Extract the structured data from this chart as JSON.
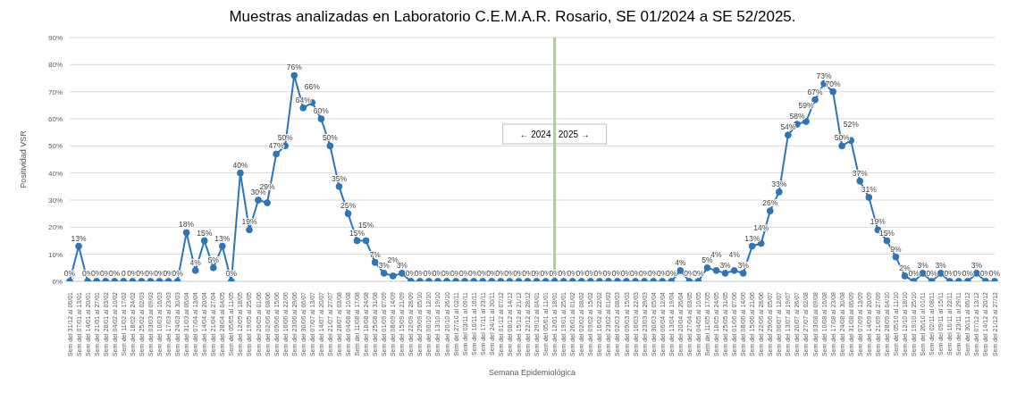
{
  "chart_data": {
    "type": "line",
    "title": "Muestras analizadas en Laboratorio C.E.M.A.R. Rosario, SE 01/2024 a SE 52/2025.",
    "xlabel": "Semana Epidemiológica",
    "ylabel": "Positividad VSR",
    "categories": [
      "Sem del 31/12 al 06/01",
      "Sem del 07/01 al 13/01",
      "Sem del 14/01 al 20/01",
      "Sem del 21/01 al 27/01",
      "Sem del 28/01 al 03/02",
      "Sem del 04/02 al 10/02",
      "Sem del 11/02 al 17/02",
      "Sem del 18/02 al 24/02",
      "Sem del 25/02 al 02/03",
      "Sem del 03/03 al 09/03",
      "Sem del 10/03 al 16/03",
      "Sem del 17/03 al 23/03",
      "Sem del 24/03 al 30/03",
      "Sem del 31/03 al 06/04",
      "Sem del 07/04 al 13/04",
      "Sem del 14/04 al 20/04",
      "Sem del 21/04 al 27/04",
      "Sem del 28/04 al 04/05",
      "Sem del 05/05 al 11/05",
      "Sem del 12/05 al 18/05",
      "Sem del 19/05 al 25/05",
      "Sem del 26/05 al 01/06",
      "Sem del 02/06 al 08/06",
      "Sem del 09/06 al 15/06",
      "Sem del 16/06 al 22/06",
      "Sem del 23/06 al 29/06",
      "Sem del 30/06 al 06/07",
      "Sem del 07/07 al 13/07",
      "Sem del 14/07 al 20/07",
      "Sem del 21/07 al 27/07",
      "Sem del 28/07 al 03/08",
      "Sem del 04/08 al 10/08",
      "Sem del 11/08 al 17/08",
      "Sem del 18/08 al 24/08",
      "Sem del 25/08 al 31/08",
      "Sem del 01/09 al 07/09",
      "Sem del 08/09 al 14/09",
      "Sem del 15/09 al 21/09",
      "Sem del 22/09 al 28/09",
      "Sem del 29/09 al 05/10",
      "Sem del 06/10 al 12/10",
      "Sem del 13/10 al 19/10",
      "Sem del 20/10 al 26/10",
      "Sem del 27/10 al 02/11",
      "Sem del 03/11 al 09/11",
      "Sem del 10/11 al 16/11",
      "Sem del 17/11 al 23/11",
      "Sem del 24/11 al 30/11",
      "Sem del 01/12 al 07/12",
      "Sem del 08/12 al 14/12",
      "Sem del 15/12 al 21/12",
      "Sem del 22/12 al 28/12",
      "Sem del 29/12 al 04/01",
      "Sem del 05/01 al 11/01",
      "Sem del 12/01 al 18/01",
      "Sem del 19/01 al 25/01",
      "Sem del 26/01 al 01/02",
      "Sem del 02/02 al 08/02",
      "Sem del 09/02 al 15/02",
      "Sem del 16/02 al 22/02",
      "Sem del 23/02 al 01/03",
      "Sem del 02/03 al 08/03",
      "Sem del 09/03 al 15/03",
      "Sem del 16/03 al 22/03",
      "Sem del 23/03 al 29/03",
      "Sem del 30/03 al 05/04",
      "Sem del 06/04 al 12/04",
      "Sem del 13/04 al 19/04",
      "Sem del 20/04 al 26/04",
      "Sem del 27/04 al 03/05",
      "Sem del 04/05 al 10/05",
      "Sem del 11/05 al 17/05",
      "Sem del 18/05 al 24/05",
      "Sem del 25/05 al 31/05",
      "Sem del 01/06 al 07/06",
      "Sem del 08/06 al 14/06",
      "Sem del 15/06 al 21/06",
      "Sem del 22/06 al 28/06",
      "Sem del 29/06 al 05/07",
      "Sem del 06/07 al 12/07",
      "Sem del 13/07 al 19/07",
      "Sem del 20/07 al 26/07",
      "Sem del 27/07 al 02/08",
      "Sem del 03/08 al 09/08",
      "Sem del 10/08 al 16/08",
      "Sem del 17/08 al 23/08",
      "Sem del 24/08 al 30/08",
      "Sem del 31/08 al 06/09",
      "Sem del 07/09 al 13/09",
      "Sem del 14/09 al 20/09",
      "Sem del 21/09 al 27/09",
      "Sem del 28/09 al 04/10",
      "Sem del 05/10 al 11/10",
      "Sem del 12/10 al 18/10",
      "Sem del 19/10 al 25/10",
      "Sem del 26/10 al 01/11",
      "Sem del 02/11 al 08/11",
      "Sem del 09/11 al 15/11",
      "Sem del 16/11 al 22/11",
      "Sem del 23/11 al 29/11",
      "Sem del 30/11 al 06/12",
      "Sem del 07/12 al 13/12",
      "Sem del 14/12 al 20/12",
      "Sem del 21/12 al 27/12"
    ],
    "values": [
      0,
      13,
      0,
      0,
      0,
      0,
      0,
      0,
      0,
      0,
      0,
      0,
      0,
      18,
      4,
      15,
      5,
      13,
      0,
      40,
      19,
      30,
      29,
      47,
      50,
      76,
      64,
      66,
      60,
      50,
      35,
      25,
      15,
      15,
      7,
      3,
      2,
      3,
      0,
      0,
      0,
      0,
      0,
      0,
      0,
      0,
      0,
      0,
      0,
      0,
      0,
      0,
      0,
      0,
      0,
      0,
      0,
      0,
      0,
      0,
      0,
      0,
      0,
      0,
      0,
      0,
      0,
      0,
      4,
      0,
      0,
      5,
      4,
      3,
      4,
      3,
      13,
      14,
      26,
      33,
      54,
      58,
      59,
      67,
      73,
      70,
      50,
      52,
      37,
      31,
      19,
      15,
      9,
      2,
      0,
      3,
      0,
      3,
      0,
      0,
      0,
      3,
      0,
      0
    ],
    "value_labels": [
      "0%",
      "13%",
      "0%",
      "0%",
      "0%",
      "0%",
      "0",
      "0%",
      "0%",
      "0%",
      "0%",
      "0%",
      "0%",
      "18%",
      "4%",
      "15%",
      "5%",
      "13%",
      "0%",
      "40%",
      "19%",
      "30%",
      "29%",
      "47%",
      "50%",
      "76%",
      "64%",
      "66%",
      "60%",
      "50%",
      "35%",
      "25%",
      "15%",
      "15%",
      "7%",
      "3%",
      "2%",
      "3%",
      "0%",
      "0%",
      "0%",
      "0%",
      "0%",
      "0%",
      "0%",
      "0%",
      "0%",
      "0%",
      "0%",
      "0%",
      "0%",
      "0%",
      "0%",
      "0%",
      "0%",
      "0%",
      "0%",
      "0%",
      "0%",
      "0%",
      "0%",
      "0%",
      "0%",
      "0%",
      "0%",
      "0%",
      "0%",
      "0%",
      "4%",
      "0%",
      "0%",
      "5%",
      "4%",
      "3%",
      "4%",
      "3%",
      "13%",
      "14%",
      "26%",
      "33%",
      "54%",
      "58%",
      "59%",
      "67%",
      "73%",
      "70%",
      "50%",
      "52%",
      "37%",
      "31%",
      "19%",
      "15%",
      "9%",
      "2%",
      "0%",
      "3%",
      "0%",
      "3%",
      "0%",
      "0%",
      "0%",
      "3%",
      "0%",
      "0%"
    ],
    "color": "#2e75b6",
    "marker": "circle",
    "line_style": "solid",
    "grid": "y",
    "ylim": [
      0,
      90
    ],
    "yticks": [
      {
        "value": 0,
        "label": "0%"
      },
      {
        "value": 10,
        "label": "10%"
      },
      {
        "value": 20,
        "label": "20%"
      },
      {
        "value": 30,
        "label": "30%"
      },
      {
        "value": 40,
        "label": "40%"
      },
      {
        "value": 50,
        "label": "50%"
      },
      {
        "value": 60,
        "label": "60%"
      },
      {
        "value": 70,
        "label": "70%"
      },
      {
        "value": 80,
        "label": "80%"
      },
      {
        "value": 90,
        "label": "90%"
      }
    ],
    "ref_lines": [
      {
        "axis": "x",
        "value": "Sem del 12/01 al 18/01",
        "label": "← 2024   2025 →",
        "color": "#a9d18e"
      }
    ]
  }
}
